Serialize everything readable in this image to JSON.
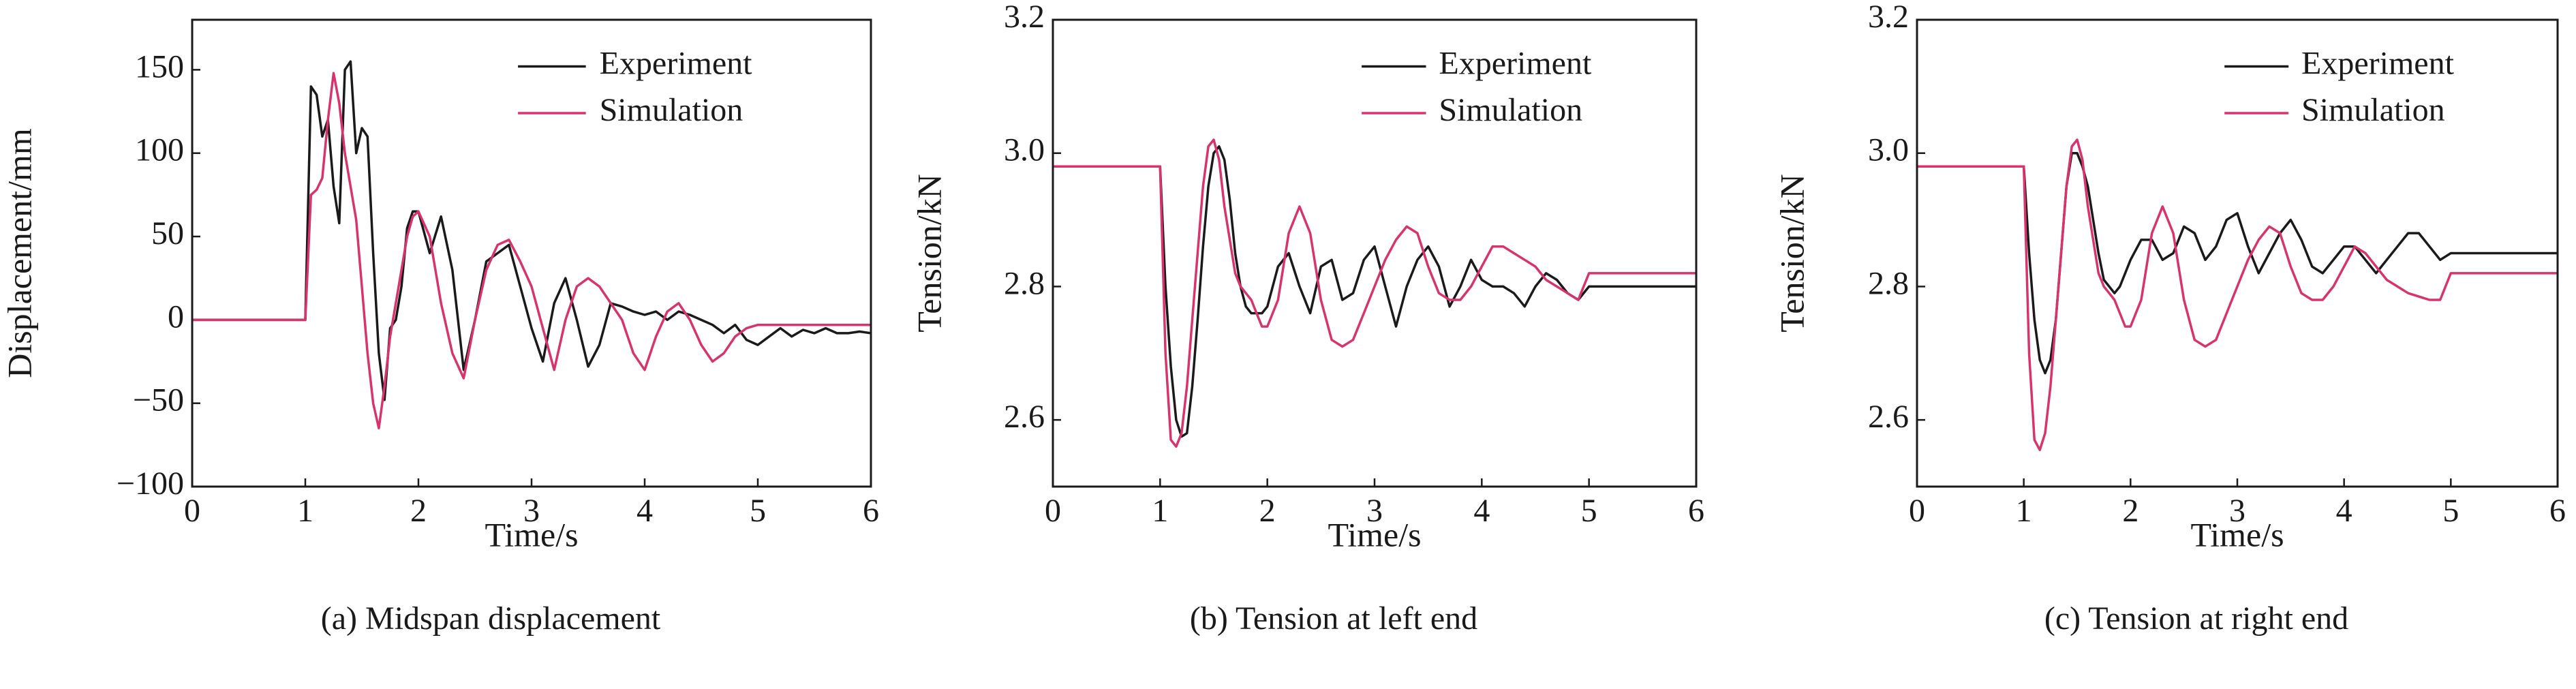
{
  "chart_data": [
    {
      "type": "line",
      "caption": "(a) Midspan displacement",
      "xlabel": "Time/s",
      "ylabel": "Displacement/mm",
      "legend": "upper right",
      "x": [
        0,
        0.5,
        1,
        1.05,
        1.1,
        1.15,
        1.2,
        1.25,
        1.3,
        1.35,
        1.4,
        1.45,
        1.5,
        1.55,
        1.6,
        1.65,
        1.7,
        1.75,
        1.8,
        1.85,
        1.9,
        1.95,
        2,
        2.1,
        2.2,
        2.3,
        2.4,
        2.5,
        2.6,
        2.7,
        2.8,
        2.9,
        3,
        3.1,
        3.2,
        3.3,
        3.4,
        3.5,
        3.6,
        3.7,
        3.8,
        3.9,
        4,
        4.1,
        4.2,
        4.3,
        4.4,
        4.5,
        4.6,
        4.7,
        4.8,
        4.9,
        5,
        5.1,
        5.2,
        5.3,
        5.4,
        5.5,
        5.6,
        5.7,
        5.8,
        5.9,
        6
      ],
      "xlim": [
        0,
        6
      ],
      "xticks": [
        0,
        1,
        2,
        3,
        4,
        5,
        6
      ],
      "ylim": [
        -100,
        180
      ],
      "yticks": [
        {
          "value": -100,
          "label": "−100"
        },
        {
          "value": -50,
          "label": "−50"
        },
        0,
        50,
        100,
        150
      ],
      "series": [
        {
          "name": "Experiment",
          "color": "#1a1a1a",
          "values": [
            0,
            0,
            0,
            140,
            135,
            110,
            120,
            80,
            58,
            150,
            155,
            100,
            115,
            110,
            40,
            -20,
            -48,
            -5,
            0,
            20,
            55,
            65,
            65,
            40,
            62,
            30,
            -30,
            0,
            35,
            40,
            45,
            20,
            -5,
            -25,
            10,
            25,
            0,
            -28,
            -15,
            10,
            8,
            5,
            3,
            5,
            0,
            5,
            3,
            0,
            -3,
            -8,
            -3,
            -12,
            -15,
            -10,
            -5,
            -10,
            -6,
            -8,
            -5,
            -8,
            -8,
            -7,
            -8
          ]
        },
        {
          "name": "Simulation",
          "color": "#d9336e",
          "values": [
            0,
            0,
            0,
            75,
            78,
            85,
            120,
            148,
            130,
            100,
            80,
            60,
            20,
            -20,
            -50,
            -65,
            -40,
            -10,
            10,
            30,
            50,
            62,
            65,
            50,
            10,
            -20,
            -35,
            0,
            30,
            45,
            48,
            35,
            20,
            -5,
            -30,
            0,
            20,
            25,
            20,
            10,
            0,
            -20,
            -30,
            -10,
            5,
            10,
            0,
            -15,
            -25,
            -20,
            -10,
            -5,
            -3,
            -3,
            -3,
            -3,
            -3,
            -3,
            -3,
            -3,
            -3,
            -3,
            -3
          ]
        }
      ]
    },
    {
      "type": "line",
      "caption": "(b) Tension at left end",
      "xlabel": "Time/s",
      "ylabel": "Tension/kN",
      "legend": "upper right",
      "x": [
        0,
        0.5,
        1,
        1.05,
        1.1,
        1.15,
        1.2,
        1.25,
        1.3,
        1.35,
        1.4,
        1.45,
        1.5,
        1.55,
        1.6,
        1.65,
        1.7,
        1.75,
        1.8,
        1.85,
        1.9,
        1.95,
        2,
        2.1,
        2.2,
        2.3,
        2.4,
        2.5,
        2.6,
        2.7,
        2.8,
        2.9,
        3,
        3.1,
        3.2,
        3.3,
        3.4,
        3.5,
        3.6,
        3.7,
        3.8,
        3.9,
        4,
        4.1,
        4.2,
        4.3,
        4.4,
        4.5,
        4.6,
        4.7,
        4.8,
        4.9,
        5,
        5.1,
        5.2,
        5.3,
        5.4,
        5.5,
        5.6,
        5.7,
        5.8,
        5.9,
        6
      ],
      "xlim": [
        0,
        6
      ],
      "xticks": [
        0,
        1,
        2,
        3,
        4,
        5,
        6
      ],
      "ylim": [
        2.5,
        3.2
      ],
      "yticks": [
        2.6,
        2.8,
        {
          "value": 3.0,
          "label": "3.0"
        },
        3.2
      ],
      "series": [
        {
          "name": "Experiment",
          "color": "#1a1a1a",
          "values": [
            2.98,
            2.98,
            2.98,
            2.8,
            2.68,
            2.6,
            2.575,
            2.58,
            2.65,
            2.75,
            2.86,
            2.95,
            3.0,
            3.01,
            2.99,
            2.93,
            2.85,
            2.8,
            2.77,
            2.76,
            2.76,
            2.76,
            2.77,
            2.83,
            2.85,
            2.8,
            2.76,
            2.83,
            2.84,
            2.78,
            2.79,
            2.84,
            2.86,
            2.8,
            2.74,
            2.8,
            2.84,
            2.86,
            2.83,
            2.77,
            2.8,
            2.84,
            2.81,
            2.8,
            2.8,
            2.79,
            2.77,
            2.8,
            2.82,
            2.81,
            2.79,
            2.78,
            2.8,
            2.8,
            2.8,
            2.8,
            2.8,
            2.8,
            2.8,
            2.8,
            2.8,
            2.8,
            2.8
          ]
        },
        {
          "name": "Simulation",
          "color": "#d9336e",
          "values": [
            2.98,
            2.98,
            2.98,
            2.7,
            2.57,
            2.56,
            2.58,
            2.65,
            2.75,
            2.85,
            2.95,
            3.01,
            3.02,
            2.99,
            2.92,
            2.87,
            2.82,
            2.8,
            2.79,
            2.78,
            2.76,
            2.74,
            2.74,
            2.78,
            2.88,
            2.92,
            2.88,
            2.78,
            2.72,
            2.71,
            2.72,
            2.76,
            2.8,
            2.84,
            2.87,
            2.89,
            2.88,
            2.83,
            2.79,
            2.78,
            2.78,
            2.8,
            2.83,
            2.86,
            2.86,
            2.85,
            2.84,
            2.83,
            2.81,
            2.8,
            2.79,
            2.78,
            2.82,
            2.82,
            2.82,
            2.82,
            2.82,
            2.82,
            2.82,
            2.82,
            2.82,
            2.82,
            2.82
          ]
        }
      ]
    },
    {
      "type": "line",
      "caption": "(c) Tension at right end",
      "xlabel": "Time/s",
      "ylabel": "Tension/kN",
      "legend": "upper right",
      "x": [
        0,
        0.5,
        1,
        1.05,
        1.1,
        1.15,
        1.2,
        1.25,
        1.3,
        1.35,
        1.4,
        1.45,
        1.5,
        1.55,
        1.6,
        1.65,
        1.7,
        1.75,
        1.8,
        1.85,
        1.9,
        1.95,
        2,
        2.1,
        2.2,
        2.3,
        2.4,
        2.5,
        2.6,
        2.7,
        2.8,
        2.9,
        3,
        3.1,
        3.2,
        3.3,
        3.4,
        3.5,
        3.6,
        3.7,
        3.8,
        3.9,
        4,
        4.1,
        4.2,
        4.3,
        4.4,
        4.5,
        4.6,
        4.7,
        4.8,
        4.9,
        5,
        5.1,
        5.2,
        5.3,
        5.4,
        5.5,
        5.6,
        5.7,
        5.8,
        5.9,
        6
      ],
      "xlim": [
        0,
        6
      ],
      "xticks": [
        0,
        1,
        2,
        3,
        4,
        5,
        6
      ],
      "ylim": [
        2.5,
        3.2
      ],
      "yticks": [
        2.6,
        2.8,
        {
          "value": 3.0,
          "label": "3.0"
        },
        3.2
      ],
      "series": [
        {
          "name": "Experiment",
          "color": "#1a1a1a",
          "values": [
            2.98,
            2.98,
            2.98,
            2.85,
            2.75,
            2.69,
            2.67,
            2.69,
            2.75,
            2.85,
            2.95,
            3.0,
            3.0,
            2.98,
            2.95,
            2.9,
            2.85,
            2.81,
            2.8,
            2.79,
            2.8,
            2.82,
            2.84,
            2.87,
            2.87,
            2.84,
            2.85,
            2.89,
            2.88,
            2.84,
            2.86,
            2.9,
            2.91,
            2.86,
            2.82,
            2.85,
            2.88,
            2.9,
            2.87,
            2.83,
            2.82,
            2.84,
            2.86,
            2.86,
            2.84,
            2.82,
            2.84,
            2.86,
            2.88,
            2.88,
            2.86,
            2.84,
            2.85,
            2.85,
            2.85,
            2.85,
            2.85,
            2.85,
            2.85,
            2.85,
            2.85,
            2.85,
            2.85
          ]
        },
        {
          "name": "Simulation",
          "color": "#d9336e",
          "values": [
            2.98,
            2.98,
            2.98,
            2.7,
            2.57,
            2.555,
            2.58,
            2.65,
            2.75,
            2.85,
            2.95,
            3.01,
            3.02,
            2.99,
            2.92,
            2.87,
            2.82,
            2.8,
            2.79,
            2.78,
            2.76,
            2.74,
            2.74,
            2.78,
            2.88,
            2.92,
            2.88,
            2.78,
            2.72,
            2.71,
            2.72,
            2.76,
            2.8,
            2.84,
            2.87,
            2.89,
            2.88,
            2.83,
            2.79,
            2.78,
            2.78,
            2.8,
            2.83,
            2.86,
            2.85,
            2.83,
            2.81,
            2.8,
            2.79,
            2.785,
            2.78,
            2.78,
            2.82,
            2.82,
            2.82,
            2.82,
            2.82,
            2.82,
            2.82,
            2.82,
            2.82,
            2.82,
            2.82
          ]
        }
      ]
    }
  ]
}
